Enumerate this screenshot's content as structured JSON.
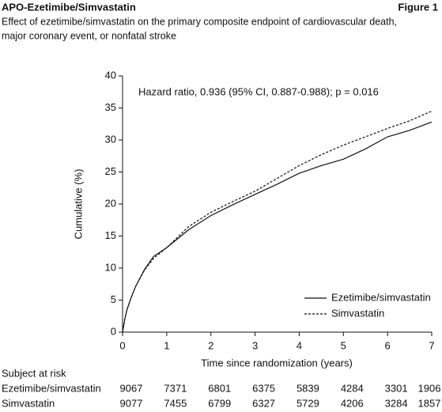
{
  "chart_data": {
    "type": "line",
    "title": "APO-Ezetimibe/Simvastatin",
    "figure_label": "Figure 1",
    "subtitle": [
      "Effect of ezetimibe/simvastatin on the primary composite endpoint of cardiovascular death,",
      "major coronary event, or nonfatal stroke"
    ],
    "annotation": "Hazard ratio, 0.936 (95% CI, 0.887-0.988); p = 0.016",
    "x_label": "Time since randomization (years)",
    "y_label": "Cumulative (%)",
    "xlim": [
      0,
      7
    ],
    "xticks": [
      0,
      1,
      2,
      3,
      4,
      5,
      6,
      7
    ],
    "ylim": [
      0,
      40
    ],
    "yticks": [
      0,
      5,
      10,
      15,
      20,
      25,
      30,
      35,
      40
    ],
    "legend_position": "lower right",
    "x": [
      0,
      0.05,
      0.1,
      0.2,
      0.3,
      0.5,
      0.7,
      1,
      1.5,
      2,
      2.5,
      3,
      3.5,
      4,
      4.5,
      5,
      5.5,
      6,
      6.5,
      7
    ],
    "series": [
      {
        "name": "Ezetimibe/simvastatin",
        "color": "#111111",
        "line_style": "solid",
        "values": [
          0,
          2,
          3.5,
          5.5,
          7.2,
          9.8,
          11.8,
          13.2,
          16,
          18.2,
          19.9,
          21.5,
          23.1,
          24.8,
          26,
          27,
          28.6,
          30.5,
          31.5,
          32.8
        ]
      },
      {
        "name": "Simvastatin",
        "color": "#111111",
        "line_style": "dashed",
        "values": [
          0,
          2,
          3.5,
          5.5,
          7.2,
          9.7,
          11.5,
          13.2,
          16.5,
          18.7,
          20.4,
          22,
          24,
          26,
          27.7,
          29.2,
          30.5,
          31.8,
          33,
          34.5
        ]
      }
    ],
    "risk_table": {
      "title": "Subject at risk",
      "rows": [
        {
          "label": "Ezetimibe/simvastatin",
          "values": [
            9067,
            7371,
            6801,
            6375,
            5839,
            4284,
            3301,
            1906
          ]
        },
        {
          "label": "Simvastatin",
          "values": [
            9077,
            7455,
            6799,
            6327,
            5729,
            4206,
            3284,
            1857
          ]
        }
      ]
    }
  }
}
